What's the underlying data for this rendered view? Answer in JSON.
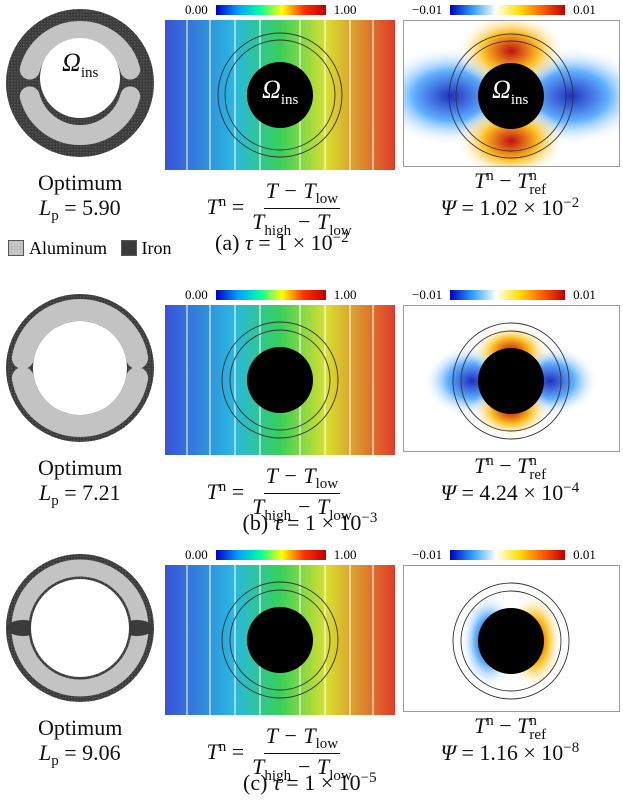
{
  "legend": {
    "aluminum": "Aluminum",
    "iron": "Iron"
  },
  "omega": {
    "symbol": "Ω",
    "sub": "ins"
  },
  "normalized": {
    "lhs": "T",
    "lhs_sup": "n",
    "eq": "=",
    "num": "T − T",
    "num_sub": "low",
    "den1": "T",
    "den1_sub": "high",
    "den2": " − T",
    "den2_sub": "low"
  },
  "difference": {
    "a": "T",
    "a_sup": "n",
    "minus": " − ",
    "b": "T",
    "b_sup": "n",
    "b_sub": "ref"
  },
  "rows": [
    {
      "label": "Optimum",
      "lp": {
        "symbol": "L",
        "sub": "p",
        "value": " = 5.90"
      },
      "colorbar1": {
        "min": "0.00",
        "max": "1.00"
      },
      "colorbar2": {
        "min": "−0.01",
        "max": "0.01"
      },
      "psi": {
        "symbol": "Ψ",
        "value": " = 1.02 × 10",
        "exp": "−2"
      },
      "caption": {
        "tag": "(a) ",
        "symbol": "τ",
        "value": " = 1 × 10",
        "exp": "−2"
      }
    },
    {
      "label": "Optimum",
      "lp": {
        "symbol": "L",
        "sub": "p",
        "value": " = 7.21"
      },
      "colorbar1": {
        "min": "0.00",
        "max": "1.00"
      },
      "colorbar2": {
        "min": "−0.01",
        "max": "0.01"
      },
      "psi": {
        "symbol": "Ψ",
        "value": " = 4.24 × 10",
        "exp": "−4"
      },
      "caption": {
        "tag": "(b) ",
        "symbol": "τ",
        "value": " = 1 × 10",
        "exp": "−3"
      }
    },
    {
      "label": "Optimum",
      "lp": {
        "symbol": "L",
        "sub": "p",
        "value": " = 9.06"
      },
      "colorbar1": {
        "min": "0.00",
        "max": "1.00"
      },
      "colorbar2": {
        "min": "−0.01",
        "max": "0.01"
      },
      "psi": {
        "symbol": "Ψ",
        "value": " = 1.16 × 10",
        "exp": "−8"
      },
      "caption": {
        "tag": "(c) ",
        "symbol": "τ",
        "value": " = 1 × 10",
        "exp": "−5"
      }
    }
  ]
}
